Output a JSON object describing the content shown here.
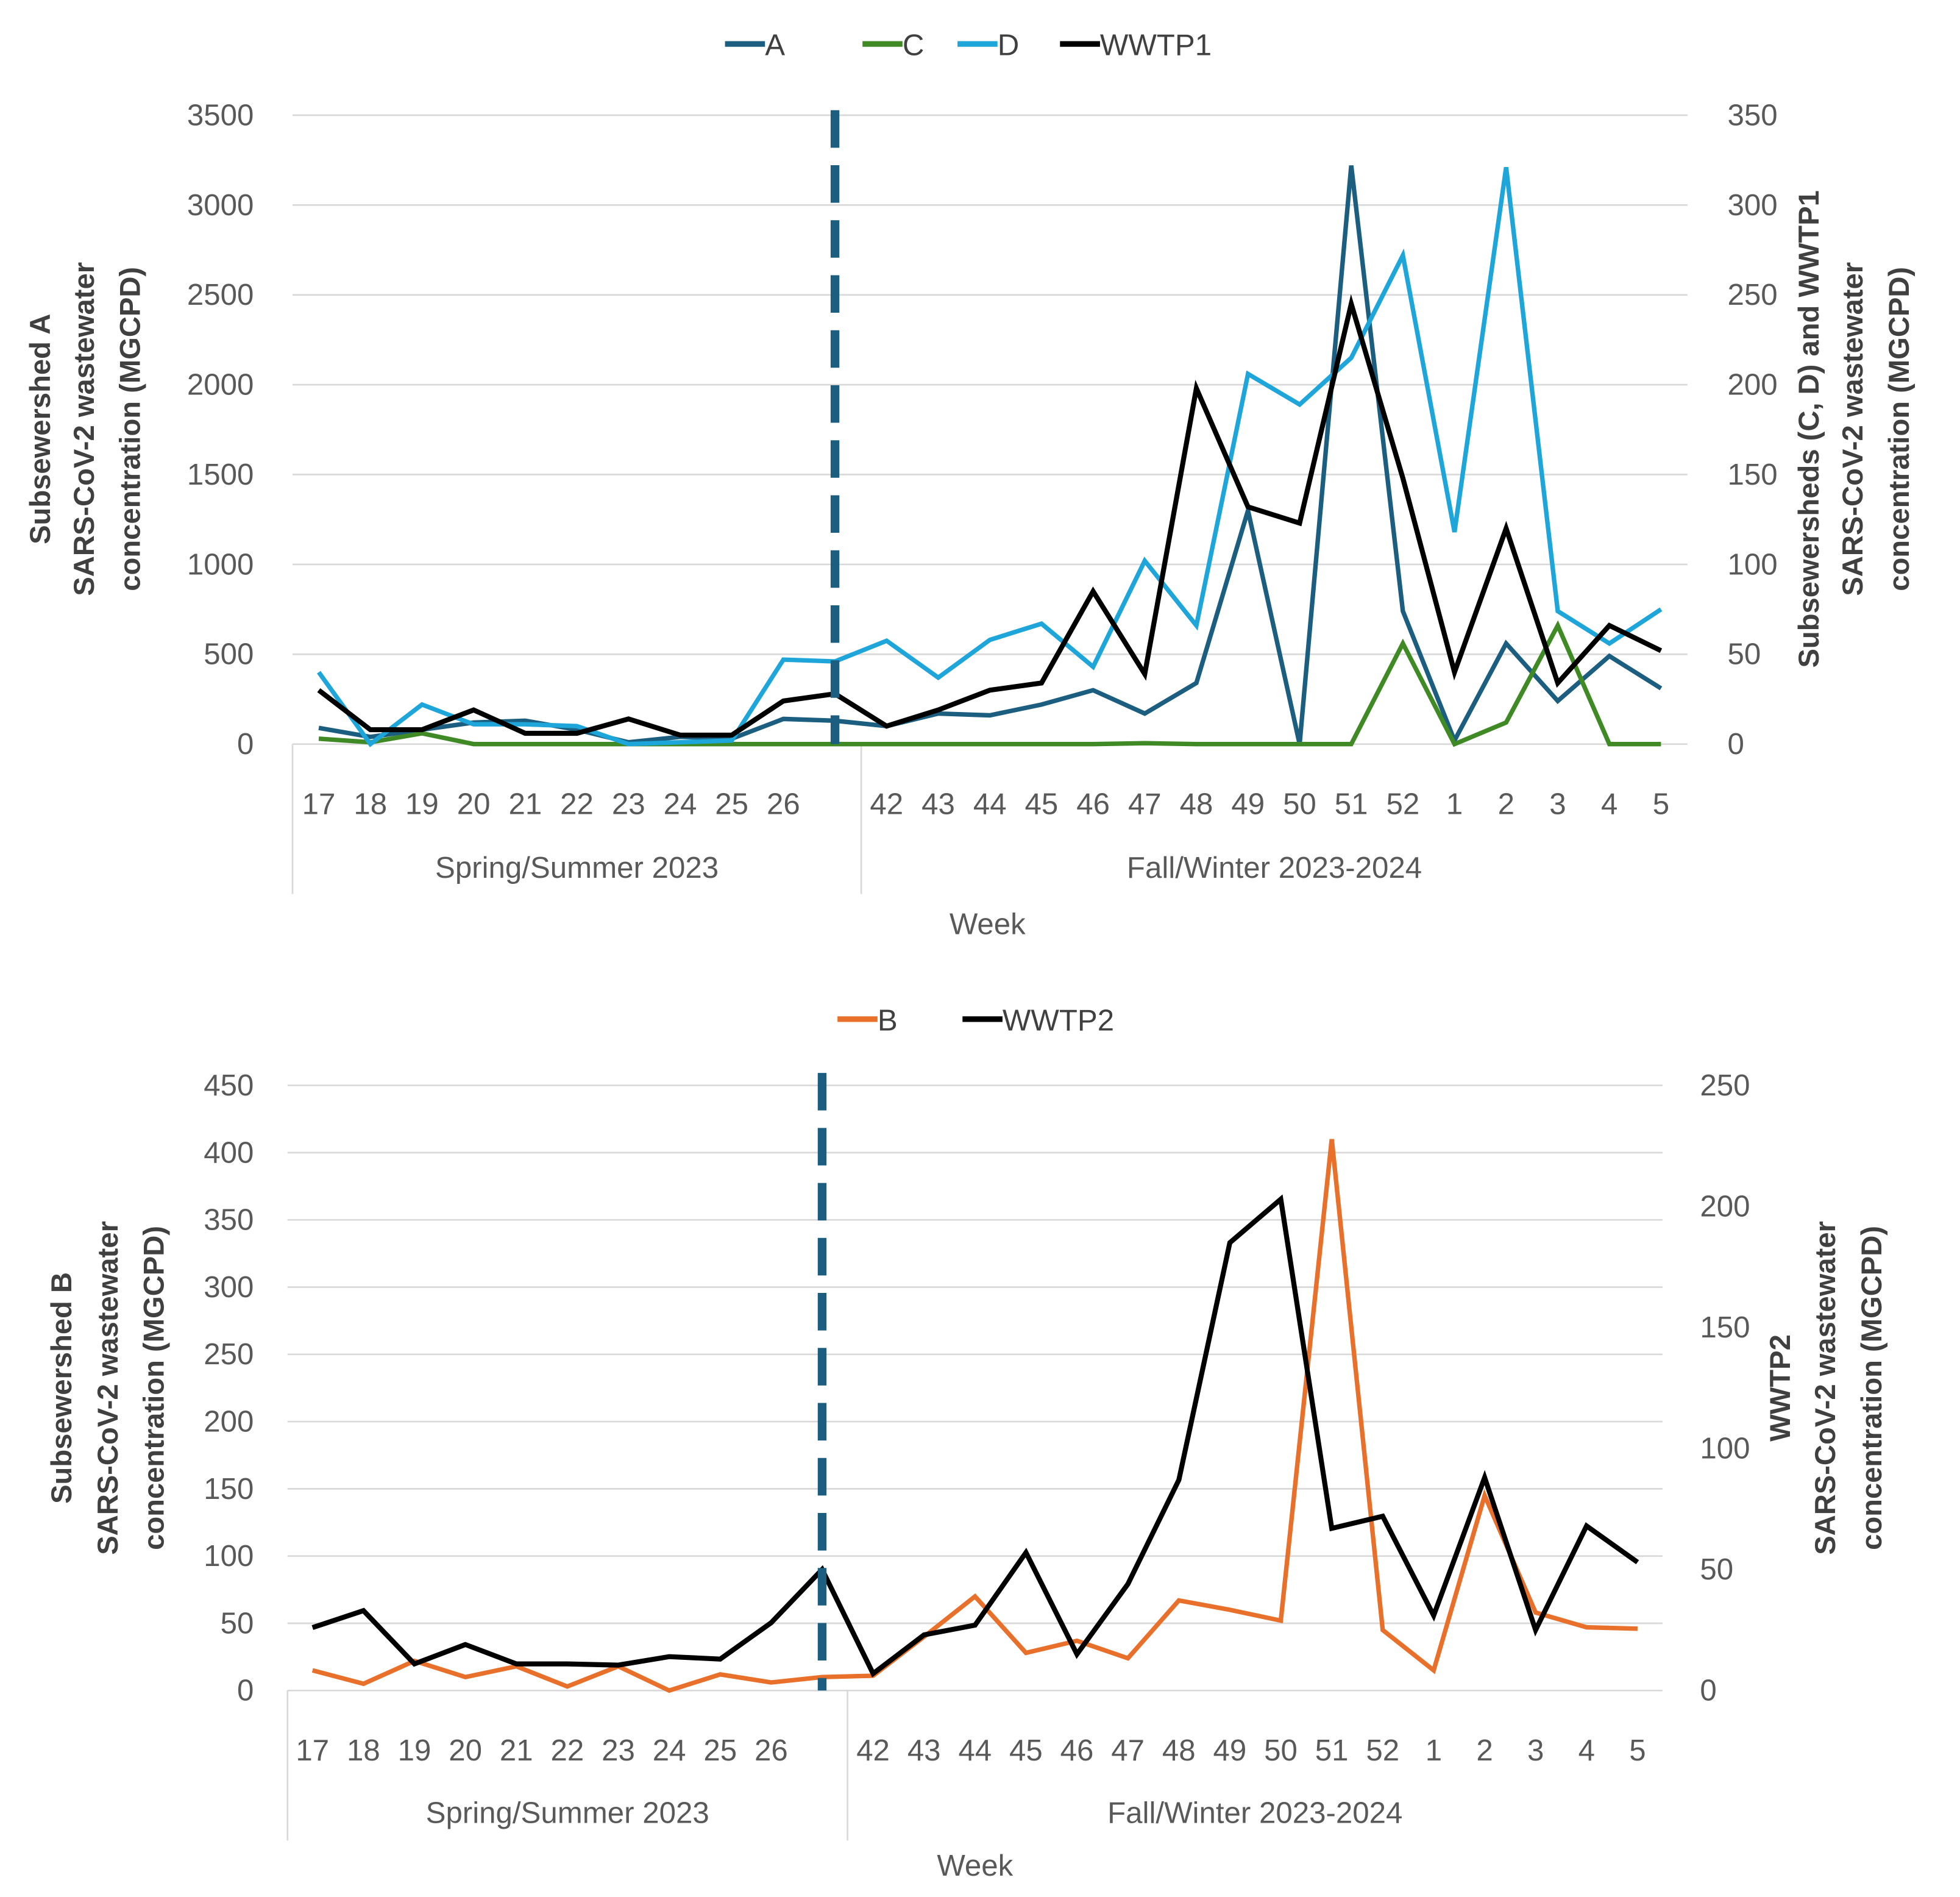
{
  "chart_data": [
    {
      "type": "line",
      "xlabel": "Week",
      "ylabel_left": [
        "Subsewershed A",
        "SARS-CoV-2 wastewater",
        "concentration (MGCPD)"
      ],
      "ylabel_right": [
        "Subsewersheds (C, D) and WWTP1",
        "SARS-CoV-2 wastewater",
        "concentration (MGCPD)"
      ],
      "groups": [
        {
          "label": "Spring/Summer 2023"
        },
        {
          "label": "Fall/Winter 2023-2024"
        }
      ],
      "categories": [
        "17",
        "18",
        "19",
        "20",
        "21",
        "22",
        "23",
        "24",
        "25",
        "26",
        "",
        "42",
        "43",
        "44",
        "45",
        "46",
        "47",
        "48",
        "49",
        "50",
        "51",
        "52",
        "1",
        "2",
        "3",
        "4",
        "5"
      ],
      "ylim_left": [
        0,
        3500
      ],
      "ylim_right": [
        0,
        350
      ],
      "left_ticks": [
        "0",
        "500",
        "1000",
        "1500",
        "2000",
        "2500",
        "3000",
        "3500"
      ],
      "right_ticks": [
        "0",
        "50",
        "100",
        "150",
        "200",
        "250",
        "300",
        "350"
      ],
      "grid": true,
      "legend_position": "top",
      "divider_after": "26",
      "series": [
        {
          "name": "A",
          "axis": "left",
          "color": "#1b5e80",
          "values": [
            90,
            40,
            80,
            120,
            130,
            80,
            10,
            40,
            30,
            140,
            130,
            100,
            170,
            160,
            220,
            300,
            170,
            340,
            1300,
            0,
            3220,
            740,
            20,
            560,
            240,
            490,
            310
          ]
        },
        {
          "name": "C",
          "axis": "right",
          "color": "#3f8a24",
          "values": [
            3,
            1,
            6,
            0,
            0,
            0,
            0,
            0,
            0,
            0,
            0,
            0,
            0,
            0,
            0,
            0,
            0.5,
            0,
            0,
            0,
            0,
            56,
            0,
            12,
            66,
            0,
            0
          ]
        },
        {
          "name": "D",
          "axis": "right",
          "color": "#1ea6da",
          "values": [
            40,
            0,
            22,
            11,
            11,
            10,
            0,
            1,
            2,
            47,
            46,
            57.5,
            37,
            58,
            67,
            43,
            102,
            66,
            206,
            189,
            215,
            272,
            118,
            321,
            74,
            56,
            75
          ]
        },
        {
          "name": "WWTP1",
          "axis": "right",
          "color": "#000000",
          "values": [
            30,
            8,
            8,
            19,
            6,
            6,
            14,
            5,
            5,
            24,
            28,
            10,
            19,
            30,
            34,
            85,
            39,
            198,
            132,
            123,
            245,
            148,
            40,
            120,
            34,
            66,
            52
          ]
        }
      ]
    },
    {
      "type": "line",
      "xlabel": "Week",
      "ylabel_left": [
        "Subsewershed B",
        "SARS-CoV-2 wastewater",
        "concentration (MGCPD)"
      ],
      "ylabel_right": [
        "WWTP2",
        "SARS-CoV-2 wastewater",
        "concentration (MGCPD)"
      ],
      "groups": [
        {
          "label": "Spring/Summer 2023"
        },
        {
          "label": "Fall/Winter 2023-2024"
        }
      ],
      "categories": [
        "17",
        "18",
        "19",
        "20",
        "21",
        "22",
        "23",
        "24",
        "25",
        "26",
        "",
        "42",
        "43",
        "44",
        "45",
        "46",
        "47",
        "48",
        "49",
        "50",
        "51",
        "52",
        "1",
        "2",
        "3",
        "4",
        "5"
      ],
      "ylim_left": [
        0,
        450
      ],
      "ylim_right": [
        0,
        250
      ],
      "left_ticks": [
        "0",
        "50",
        "100",
        "150",
        "200",
        "250",
        "300",
        "350",
        "400",
        "450"
      ],
      "right_ticks": [
        "0",
        "50",
        "100",
        "150",
        "200",
        "250"
      ],
      "grid": true,
      "legend_position": "top",
      "divider_after": "26",
      "series": [
        {
          "name": "B",
          "axis": "left",
          "color": "#e8702a",
          "values": [
            15,
            5,
            22,
            10,
            18,
            3,
            18,
            0,
            12,
            6,
            10,
            11,
            40,
            70,
            28,
            37,
            24,
            67,
            60,
            52,
            410,
            45,
            15,
            145,
            58,
            47,
            46
          ]
        },
        {
          "name": "WWTP2",
          "axis": "right",
          "color": "#000000",
          "values": [
            26,
            33,
            11,
            19,
            11,
            11,
            10.5,
            14,
            13,
            28,
            50,
            7,
            23,
            27,
            57,
            15,
            44,
            87,
            185,
            203,
            67,
            72,
            31,
            88,
            25,
            68,
            53
          ]
        }
      ]
    }
  ],
  "divider_color": "#1b5e80"
}
